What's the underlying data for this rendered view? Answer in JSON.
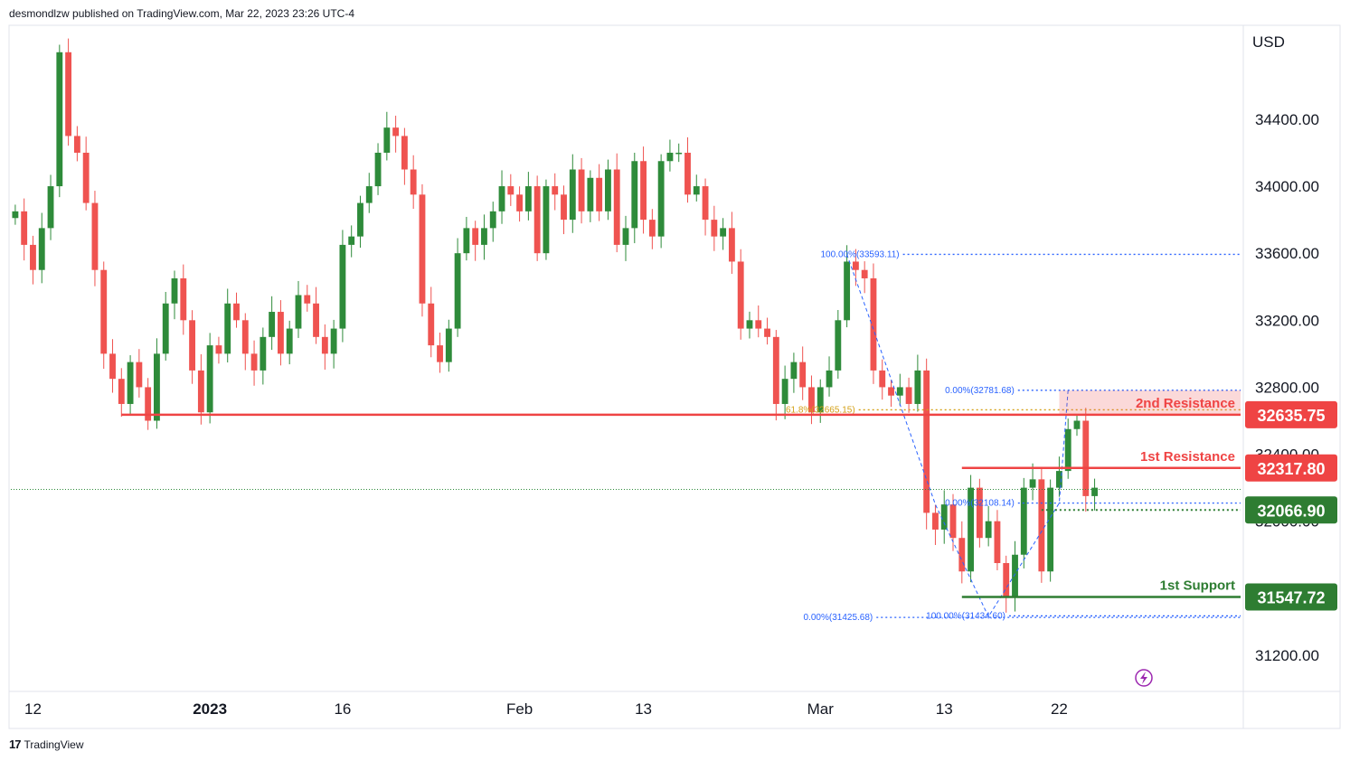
{
  "header": {
    "published_by": "desmondlzw published on TradingView.com, Mar 22, 2023 23:26 UTC-4"
  },
  "footer": {
    "brand": "TradingView",
    "logo_glyph": "17"
  },
  "colors": {
    "up": "#2e8b3a",
    "down": "#ef5350",
    "resistance": "#ef4444",
    "support": "#2e7d32",
    "fib": "#2962ff",
    "fib_gold": "#d4a017"
  },
  "chart_data": {
    "type": "candlestick",
    "currency": "USD",
    "ylim": [
      31000,
      34950
    ],
    "y_ticks": [
      34400,
      34000,
      33600,
      33200,
      32800,
      32400,
      32000,
      31600,
      31200
    ],
    "y_tick_labels": [
      "34400.00",
      "34000.00",
      "33600.00",
      "33200.00",
      "32800.00",
      "32400.00",
      "32000.00",
      "31600.00",
      "31200.00"
    ],
    "x_labels": [
      {
        "label": "12",
        "index": 2
      },
      {
        "label": "2023",
        "index": 22
      },
      {
        "label": "16",
        "index": 37
      },
      {
        "label": "Feb",
        "index": 57
      },
      {
        "label": "13",
        "index": 71
      },
      {
        "label": "Mar",
        "index": 91
      },
      {
        "label": "13",
        "index": 105
      },
      {
        "label": "22",
        "index": 118
      }
    ],
    "bar_count": 123,
    "current_price": 32190,
    "levels": [
      {
        "name": "2nd Resistance",
        "price": 32635.75,
        "label": "32635.75",
        "kind": "resistance",
        "from_index": 12
      },
      {
        "name": "1st Resistance",
        "price": 32317.8,
        "label": "32317.80",
        "kind": "resistance",
        "from_index": 107
      },
      {
        "name": "",
        "price": 32066.9,
        "label": "32066.90",
        "kind": "pivot",
        "from_index": 116
      },
      {
        "name": "1st Support",
        "price": 31547.72,
        "label": "31547.72",
        "kind": "support",
        "from_index": 107
      }
    ],
    "fib_labels": [
      {
        "text": "100.00%(33593.11)",
        "price": 33593.11,
        "index": 94
      },
      {
        "text": "61.8%(32665.15)",
        "price": 32665.15,
        "index": 89
      },
      {
        "text": "0.00%(32781.68)",
        "price": 32781.68,
        "index": 107
      },
      {
        "text": "0.00%(32108.14)",
        "price": 32108.14,
        "index": 107
      },
      {
        "text": "0.00%(31425.68)",
        "price": 31425.68,
        "index": 91
      },
      {
        "text": "100.00%(31434.60)",
        "price": 31434.6,
        "index": 106
      }
    ],
    "closes": [
      33850,
      33650,
      33500,
      33750,
      34000,
      34800,
      34300,
      34200,
      33900,
      33500,
      33000,
      32850,
      32700,
      32950,
      32800,
      32600,
      33000,
      33300,
      33450,
      33200,
      32900,
      32650,
      33050,
      33000,
      33300,
      33200,
      33000,
      32900,
      33100,
      33250,
      33000,
      33150,
      33350,
      33300,
      33100,
      33000,
      33150,
      33650,
      33700,
      33900,
      34000,
      34200,
      34350,
      34300,
      34100,
      33950,
      33300,
      33050,
      32950,
      33150,
      33600,
      33750,
      33650,
      33750,
      33850,
      34000,
      33950,
      33850,
      34000,
      33600,
      34000,
      33950,
      33800,
      34100,
      33850,
      34050,
      33850,
      34100,
      33650,
      33750,
      34150,
      33800,
      33700,
      34150,
      34200,
      34200,
      33950,
      34000,
      33800,
      33700,
      33750,
      33550,
      33150,
      33200,
      33150,
      33100,
      32700,
      32850,
      32950,
      32800,
      32650,
      32800,
      32900,
      33200,
      33550,
      33500,
      33450,
      32900,
      32800,
      32750,
      32800,
      32700,
      32900,
      32050,
      31950,
      32100,
      31900,
      31700,
      32200,
      31900,
      32000,
      31750,
      31550,
      31800,
      32200,
      32250,
      31700,
      32200,
      32300,
      32550,
      32600,
      32150,
      32200
    ]
  }
}
